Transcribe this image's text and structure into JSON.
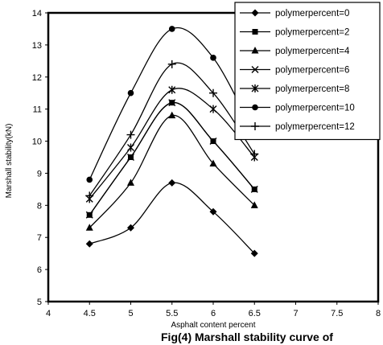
{
  "figure": {
    "caption": "Fig(4) Marshall stability curve of"
  },
  "chart_data": {
    "type": "line",
    "title": "",
    "xlabel": "Asphalt content percent",
    "ylabel": "Marshall stability(kN)",
    "xlim": [
      4,
      8
    ],
    "ylim": [
      5,
      14
    ],
    "xticks": [
      4,
      4.5,
      5,
      5.5,
      6,
      6.5,
      7,
      7.5,
      8
    ],
    "yticks": [
      5,
      6,
      7,
      8,
      9,
      10,
      11,
      12,
      13,
      14
    ],
    "grid": false,
    "legend_position": "top-right",
    "x": [
      4.5,
      5,
      5.5,
      6,
      6.5
    ],
    "series": [
      {
        "name": "polymerpercent=0",
        "marker": "diamond",
        "values": [
          6.8,
          7.3,
          8.7,
          7.8,
          6.5
        ]
      },
      {
        "name": "polymerpercent=2",
        "marker": "square",
        "values": [
          7.7,
          9.5,
          11.2,
          10.0,
          8.5
        ]
      },
      {
        "name": "polymerpercent=4",
        "marker": "triangle",
        "values": [
          7.3,
          8.7,
          10.8,
          9.3,
          8.0
        ]
      },
      {
        "name": "polymerpercent=6",
        "marker": "x",
        "values": [
          7.7,
          9.5,
          11.2,
          10.0,
          8.5
        ]
      },
      {
        "name": "polymerpercent=8",
        "marker": "star",
        "values": [
          8.2,
          9.8,
          11.6,
          11.0,
          9.5
        ]
      },
      {
        "name": "polymerpercent=10",
        "marker": "circle",
        "values": [
          8.8,
          11.5,
          13.5,
          12.6,
          10.2
        ]
      },
      {
        "name": "polymerpercent=12",
        "marker": "plus",
        "values": [
          8.3,
          10.2,
          12.4,
          11.5,
          9.6
        ]
      }
    ]
  }
}
